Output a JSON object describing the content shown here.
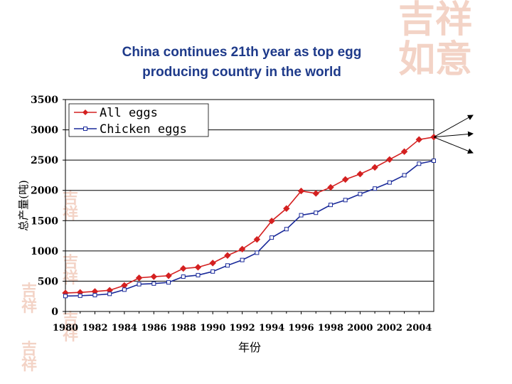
{
  "slide": {
    "title_line1": "China continues 21th year as top egg",
    "title_line2": "producing country in the world"
  },
  "colors": {
    "title": "#1e3a8a",
    "all_eggs": "#d42020",
    "chicken_eggs": "#1a2a9a",
    "watermark": "#f3d3c6"
  },
  "chart_data": {
    "type": "line",
    "title": "China continues 21th year as top egg producing country in the world",
    "xlabel": "年份",
    "ylabel": "总产量(吨)",
    "x": [
      1980,
      1981,
      1982,
      1983,
      1984,
      1985,
      1986,
      1987,
      1988,
      1989,
      1990,
      1991,
      1992,
      1993,
      1994,
      1995,
      1996,
      1997,
      1998,
      1999,
      2000,
      2001,
      2002,
      2003,
      2004,
      2005
    ],
    "x_ticks": [
      "1980",
      "1982",
      "1984",
      "1986",
      "1988",
      "1990",
      "1992",
      "1994",
      "1996",
      "1998",
      "2000",
      "2002",
      "2004"
    ],
    "y_ticks": [
      "0",
      "500",
      "1000",
      "1500",
      "2000",
      "2500",
      "3000",
      "3500"
    ],
    "ylim": [
      0,
      3500
    ],
    "xlim": [
      1980,
      2005
    ],
    "grid": "horizontal",
    "legend_position": "top-left",
    "series": [
      {
        "name": "All eggs",
        "marker": "diamond",
        "values": [
          305,
          315,
          330,
          350,
          430,
          555,
          575,
          590,
          710,
          730,
          800,
          925,
          1030,
          1190,
          1495,
          1700,
          1990,
          1950,
          2050,
          2180,
          2270,
          2380,
          2510,
          2640,
          2840,
          2880
        ]
      },
      {
        "name": "Chicken eggs",
        "marker": "square",
        "values": [
          255,
          260,
          270,
          290,
          360,
          450,
          460,
          480,
          575,
          600,
          660,
          760,
          850,
          970,
          1220,
          1360,
          1590,
          1630,
          1760,
          1840,
          1940,
          2030,
          2130,
          2250,
          2440,
          2490
        ]
      }
    ]
  }
}
